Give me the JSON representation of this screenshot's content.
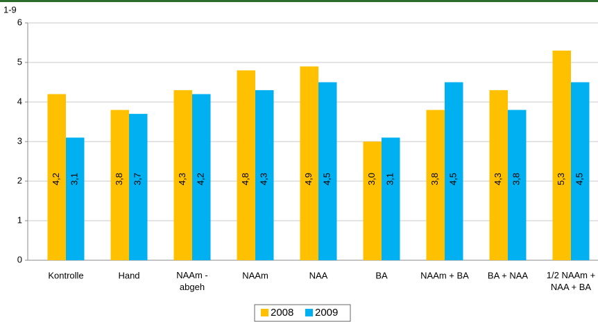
{
  "chart_data": {
    "type": "bar",
    "y_axis_label": "1-9",
    "categories": [
      "Kontrolle",
      "Hand",
      "NAAm -\nabgeh",
      "NAAm",
      "NAA",
      "BA",
      "NAAm + BA",
      "BA + NAA",
      "1/2 NAAm +\nNAA + BA"
    ],
    "series": [
      {
        "name": "2008",
        "color": "#ffc000",
        "values": [
          4.2,
          3.8,
          4.3,
          4.8,
          4.9,
          3.0,
          3.8,
          4.3,
          5.3
        ],
        "value_labels": [
          "4,2",
          "3,8",
          "4,3",
          "4,8",
          "4,9",
          "3,0",
          "3,8",
          "4,3",
          "5,3"
        ]
      },
      {
        "name": "2009",
        "color": "#00b0f0",
        "values": [
          3.1,
          3.7,
          4.2,
          4.3,
          4.5,
          3.1,
          4.5,
          3.8,
          4.5
        ],
        "value_labels": [
          "3,1",
          "3,7",
          "4,2",
          "4,3",
          "4,5",
          "3,1",
          "4,5",
          "3,8",
          "4,5"
        ]
      }
    ],
    "ylim": [
      0,
      6
    ],
    "yticks": [
      0,
      1,
      2,
      3,
      4,
      5,
      6
    ],
    "grid": true
  }
}
